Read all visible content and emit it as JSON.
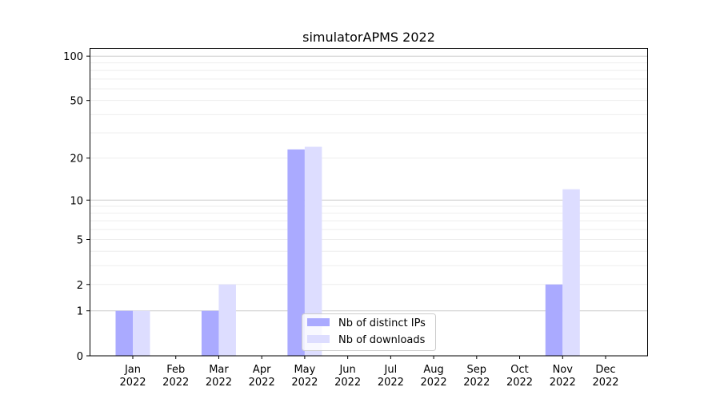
{
  "chart_data": {
    "type": "bar",
    "title": "simulatorAPMS 2022",
    "xlabel": "",
    "ylabel": "",
    "yscale": "symlog (log10(1+y))",
    "ylim": [
      0,
      113
    ],
    "yticks": [
      0,
      1,
      2,
      5,
      10,
      20,
      50,
      100
    ],
    "grid": true,
    "legend_position": "bottom-center",
    "categories": [
      "Jan\n2022",
      "Feb\n2022",
      "Mar\n2022",
      "Apr\n2022",
      "May\n2022",
      "Jun\n2022",
      "Jul\n2022",
      "Aug\n2022",
      "Sep\n2022",
      "Oct\n2022",
      "Nov\n2022",
      "Dec\n2022"
    ],
    "series": [
      {
        "name": "Nb of distinct IPs",
        "color": "#aaaaff",
        "values": [
          1,
          0,
          1,
          0,
          23,
          0,
          0,
          0,
          0,
          0,
          2,
          0
        ]
      },
      {
        "name": "Nb of downloads",
        "color": "#ddddff",
        "values": [
          1,
          0,
          2,
          0,
          24,
          0,
          0,
          0,
          0,
          0,
          12,
          0
        ]
      }
    ]
  }
}
